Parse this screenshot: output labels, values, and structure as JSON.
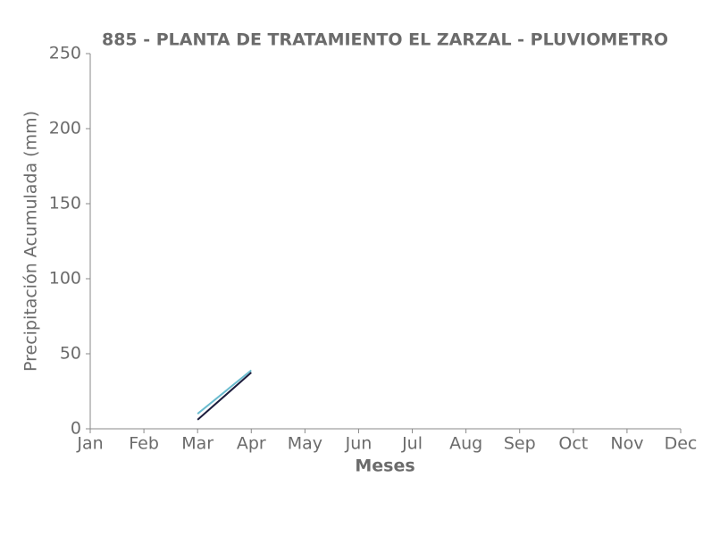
{
  "chart_data": {
    "type": "line",
    "title": "885 - PLANTA DE TRATAMIENTO EL ZARZAL - PLUVIOMETRO",
    "x_label": "Meses",
    "y_label": "Precipitación Acumulada (mm)",
    "categories": [
      "Jan",
      "Feb",
      "Mar",
      "Apr",
      "May",
      "Jun",
      "Jul",
      "Aug",
      "Sep",
      "Oct",
      "Nov",
      "Dec"
    ],
    "series": [
      {
        "color": "#6bbccf",
        "values": [
          null,
          null,
          10,
          39,
          null,
          null,
          null,
          null,
          null,
          null,
          null,
          null
        ]
      },
      {
        "color": "#1c1c3c",
        "values": [
          null,
          null,
          6,
          37.5,
          null,
          null,
          null,
          null,
          null,
          null,
          null,
          null
        ]
      }
    ],
    "ylim": [
      0,
      250
    ],
    "yticks": [
      0,
      50,
      100,
      150,
      200,
      250
    ]
  }
}
